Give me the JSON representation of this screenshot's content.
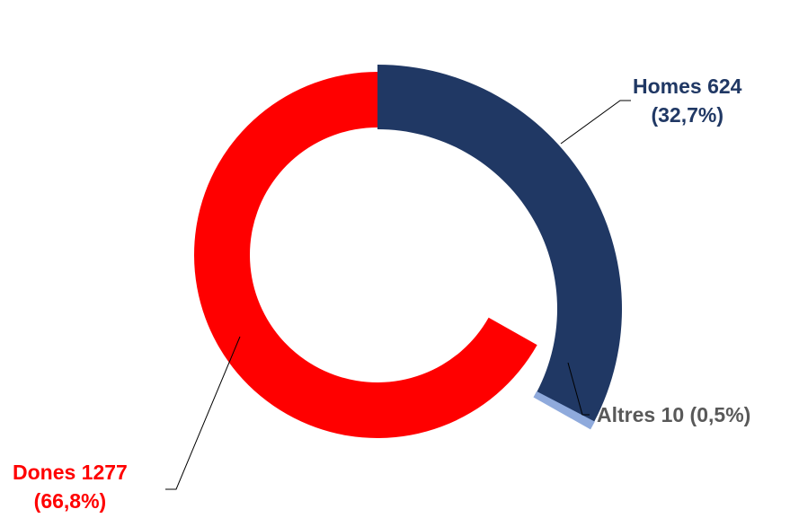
{
  "chart_data": {
    "type": "pie",
    "variant": "exploded-donut",
    "title": "",
    "slices": [
      {
        "name": "Homes",
        "value": 624,
        "percent": 32.7,
        "label_line1": "Homes 624",
        "label_line2": "(32,7%)",
        "color": "#203864",
        "label_color": "#203864"
      },
      {
        "name": "Altres",
        "value": 10,
        "percent": 0.5,
        "label_line1": "Altres 10 (0,5%)",
        "label_line2": "",
        "color": "#8FAADC",
        "label_color": "#595959"
      },
      {
        "name": "Dones",
        "value": 1277,
        "percent": 66.8,
        "label_line1": "Dones 1277",
        "label_line2": "(66,8%)",
        "color": "#FF0000",
        "label_color": "#FF0000"
      }
    ],
    "legend": "none",
    "start_angle": "12 o'clock, clockwise"
  }
}
